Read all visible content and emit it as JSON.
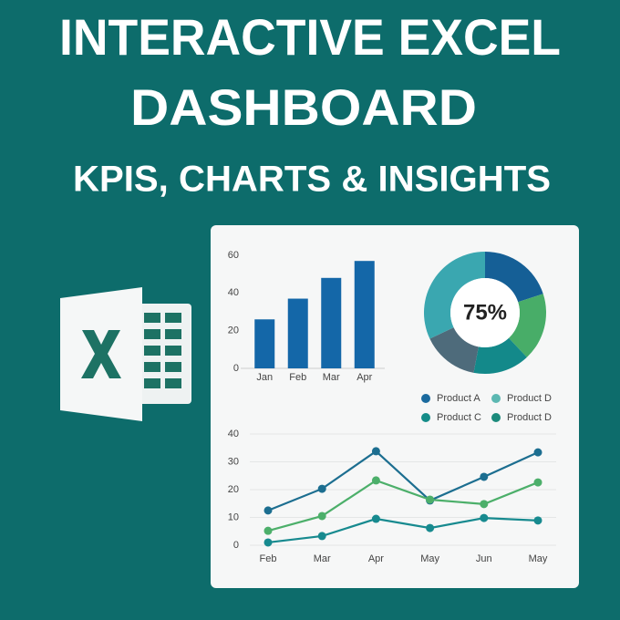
{
  "header": {
    "title_line1": "INTERACTIVE EXCEL",
    "title_line2": "DASHBOARD",
    "subtitle": "KPIS, CHARTS & INSIGHTS"
  },
  "chart_data": [
    {
      "type": "bar",
      "categories": [
        "Jan",
        "Feb",
        "Mar",
        "Apr"
      ],
      "values": [
        26,
        37,
        48,
        57
      ],
      "color": "#1467a8",
      "ylim": [
        0,
        60
      ],
      "yticks": [
        0,
        20,
        40,
        60
      ]
    },
    {
      "type": "pie",
      "center_label": "75%",
      "values": [
        20,
        18,
        15,
        15,
        32
      ],
      "colors": [
        "#155f96",
        "#48ad68",
        "#13898a",
        "#4e6b7b",
        "#3aa7b0"
      ],
      "legend": [
        {
          "name": "Product A",
          "color": "#1a6a9e"
        },
        {
          "name": "Product D",
          "color": "#5cb8b2"
        },
        {
          "name": "Product C",
          "color": "#148c88"
        },
        {
          "name": "Product D",
          "color": "#1b8a7b"
        }
      ]
    },
    {
      "type": "line",
      "categories": [
        "Feb",
        "Mar",
        "Apr",
        "May",
        "Jun",
        "May"
      ],
      "ylim": [
        0,
        40
      ],
      "yticks": [
        0,
        10,
        20,
        30,
        40
      ],
      "grid": true,
      "series": [
        {
          "color": "#1c6e90",
          "values": [
            12.5,
            20.3,
            33.8,
            16.1,
            24.6,
            33.4
          ]
        },
        {
          "color": "#4caf6a",
          "values": [
            5.2,
            10.5,
            23.3,
            16.4,
            14.8,
            22.6
          ]
        },
        {
          "color": "#178a8f",
          "values": [
            1,
            3.3,
            9.5,
            6.2,
            9.8,
            8.9
          ]
        }
      ]
    }
  ]
}
